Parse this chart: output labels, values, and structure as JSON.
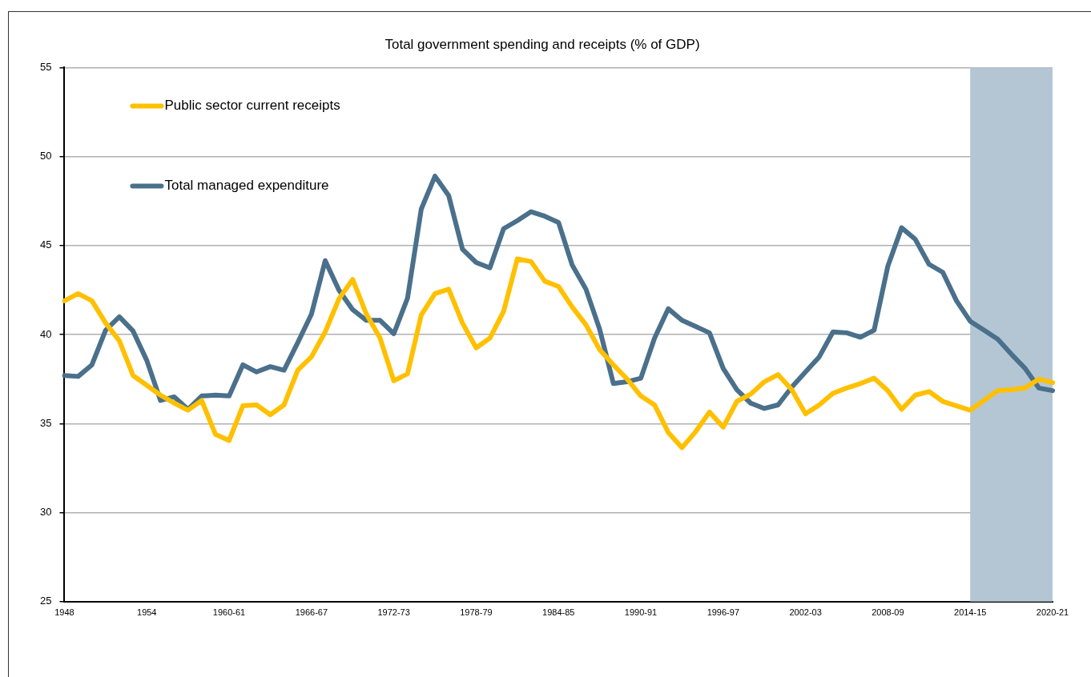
{
  "chart_data": {
    "type": "line",
    "title": "Total government spending and receipts (% of GDP)",
    "categories": [
      "1948",
      null,
      null,
      null,
      null,
      null,
      "1954",
      null,
      null,
      null,
      null,
      null,
      "1960-61",
      null,
      null,
      null,
      null,
      null,
      "1966-67",
      null,
      null,
      null,
      null,
      null,
      "1972-73",
      null,
      null,
      null,
      null,
      null,
      "1978-79",
      null,
      null,
      null,
      null,
      null,
      "1984-85",
      null,
      null,
      null,
      null,
      null,
      "1990-91",
      null,
      null,
      null,
      null,
      null,
      "1996-97",
      null,
      null,
      null,
      null,
      null,
      "2002-03",
      null,
      null,
      null,
      null,
      null,
      "2008-09",
      null,
      null,
      null,
      null,
      null,
      "2014-15",
      null,
      null,
      null,
      null,
      null,
      "2020-21"
    ],
    "series": [
      {
        "name": "Public sector current receipts",
        "color": "#ffc000",
        "values": [
          41.9,
          42.3,
          41.9,
          40.65,
          39.65,
          37.7,
          37.15,
          36.6,
          36.15,
          35.75,
          36.3,
          34.4,
          34.05,
          36.0,
          36.05,
          35.5,
          36.05,
          38.0,
          38.75,
          40.15,
          42.0,
          43.1,
          41.15,
          39.8,
          37.4,
          37.8,
          41.1,
          42.3,
          42.55,
          40.65,
          39.25,
          39.8,
          41.3,
          44.25,
          44.1,
          43.0,
          42.7,
          41.55,
          40.55,
          39.15,
          38.3,
          37.5,
          36.55,
          36.05,
          34.5,
          33.65,
          34.55,
          35.65,
          34.8,
          36.25,
          36.65,
          37.35,
          37.75,
          36.9,
          35.55,
          36.05,
          36.7,
          37.0,
          37.25,
          37.55,
          36.85,
          35.8,
          36.6,
          36.8,
          36.25,
          36.0,
          35.75,
          36.3,
          36.85,
          36.9,
          37.0,
          37.5,
          37.3
        ]
      },
      {
        "name": "Total managed expenditure",
        "color": "#4a708b",
        "values": [
          37.7,
          37.65,
          38.3,
          40.25,
          41.0,
          40.2,
          38.55,
          36.3,
          36.5,
          35.8,
          36.55,
          36.6,
          36.55,
          38.3,
          37.9,
          38.2,
          38.0,
          39.55,
          41.15,
          44.15,
          42.5,
          41.4,
          40.8,
          40.8,
          40.05,
          42.05,
          47.05,
          48.9,
          47.8,
          44.8,
          44.05,
          43.75,
          45.95,
          46.4,
          46.9,
          46.65,
          46.3,
          43.9,
          42.55,
          40.3,
          37.25,
          37.35,
          37.55,
          39.8,
          41.45,
          40.8,
          40.45,
          40.1,
          38.1,
          36.9,
          36.15,
          35.85,
          36.05,
          37.05,
          37.9,
          38.75,
          40.15,
          40.1,
          39.85,
          40.25,
          43.85,
          46.0,
          45.35,
          43.95,
          43.5,
          41.9,
          40.75,
          40.25,
          39.75,
          38.9,
          38.1,
          37.0,
          36.85
        ]
      }
    ],
    "ylim": [
      25,
      55
    ],
    "yticks": [
      25,
      30,
      35,
      40,
      45,
      50,
      55
    ],
    "bands": [
      {
        "axis": "x",
        "from": "2014-15",
        "to": "2020-21",
        "color": "#b4c6d4"
      }
    ],
    "grid": "y",
    "legend": "top left",
    "marker": "none",
    "line_style": "solid"
  }
}
